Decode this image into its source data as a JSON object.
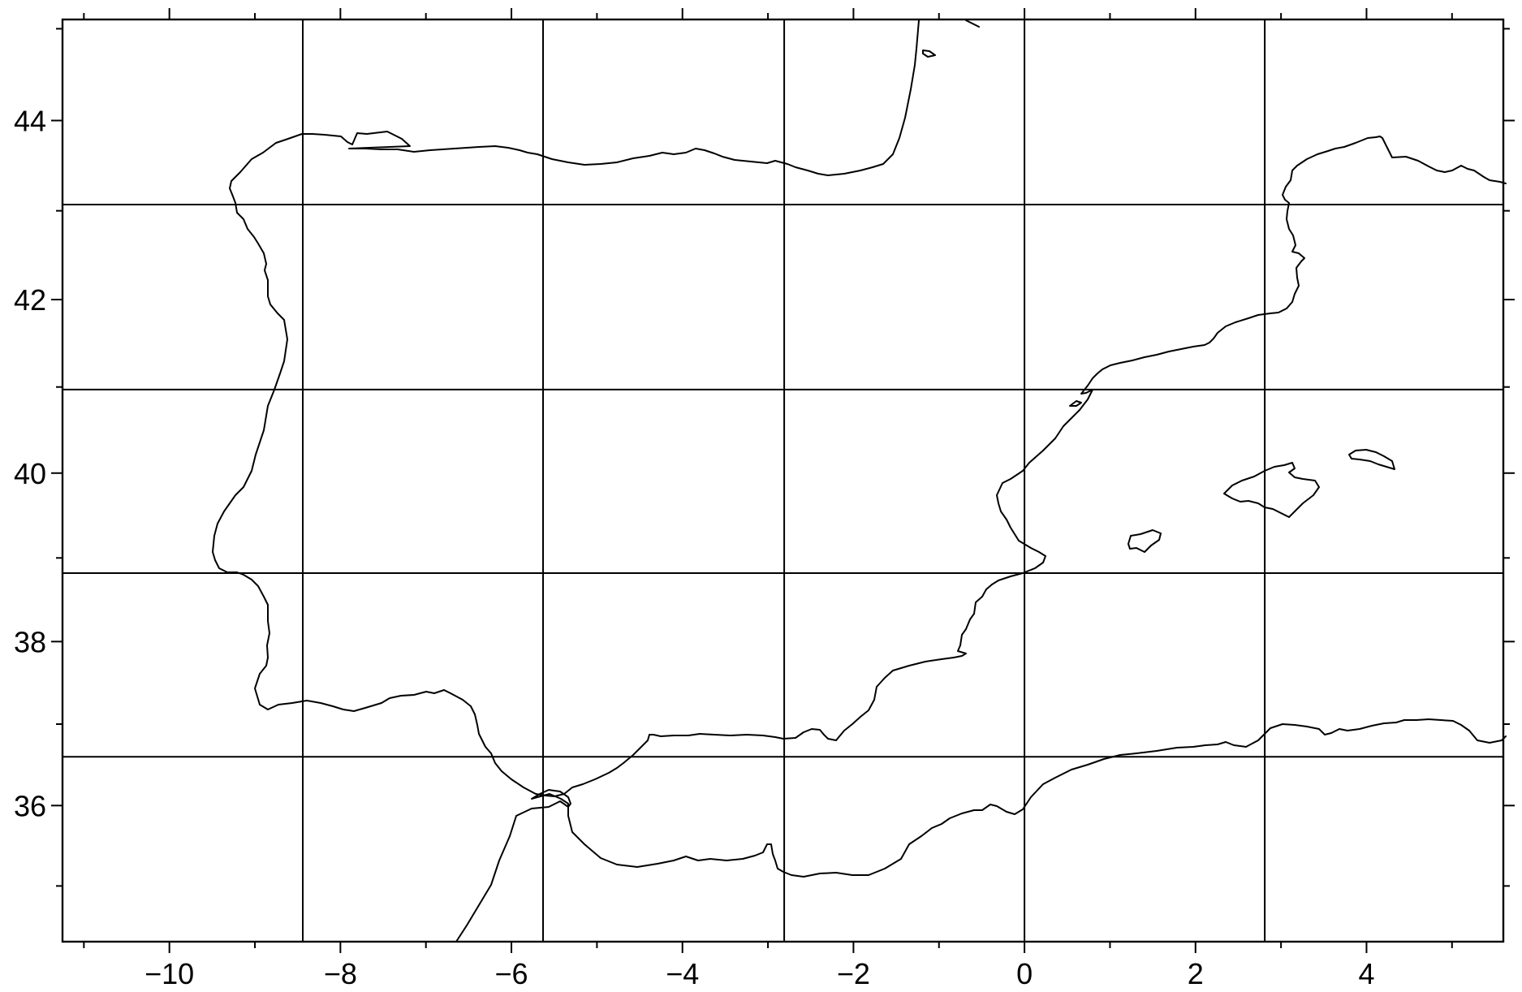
{
  "map": {
    "projection": "Mercator",
    "lon_range": [
      -11.25,
      5.6
    ],
    "lat_range": [
      34.3,
      45.1
    ],
    "x_tick_labels": [
      "−10",
      "−8",
      "−6",
      "−4",
      "−2",
      "0",
      "2",
      "4"
    ],
    "x_tick_values": [
      -10,
      -8,
      -6,
      -4,
      -2,
      0,
      2,
      4
    ],
    "y_tick_labels": [
      "44",
      "42",
      "40",
      "38",
      "36"
    ],
    "y_tick_values": [
      44,
      42,
      40,
      38,
      36
    ],
    "minor_tick_step_deg": 1,
    "grid_lon": [
      -8.44,
      -5.63,
      -2.81,
      0,
      2.81
    ],
    "grid_lat": [
      43.07,
      40.97,
      38.82,
      36.6
    ],
    "colors": {
      "ink": "#000000",
      "background": "#ffffff"
    },
    "features": [
      "Iberian Peninsula",
      "France (south-west)",
      "Morocco / Algeria coast",
      "Balearic Islands"
    ]
  }
}
